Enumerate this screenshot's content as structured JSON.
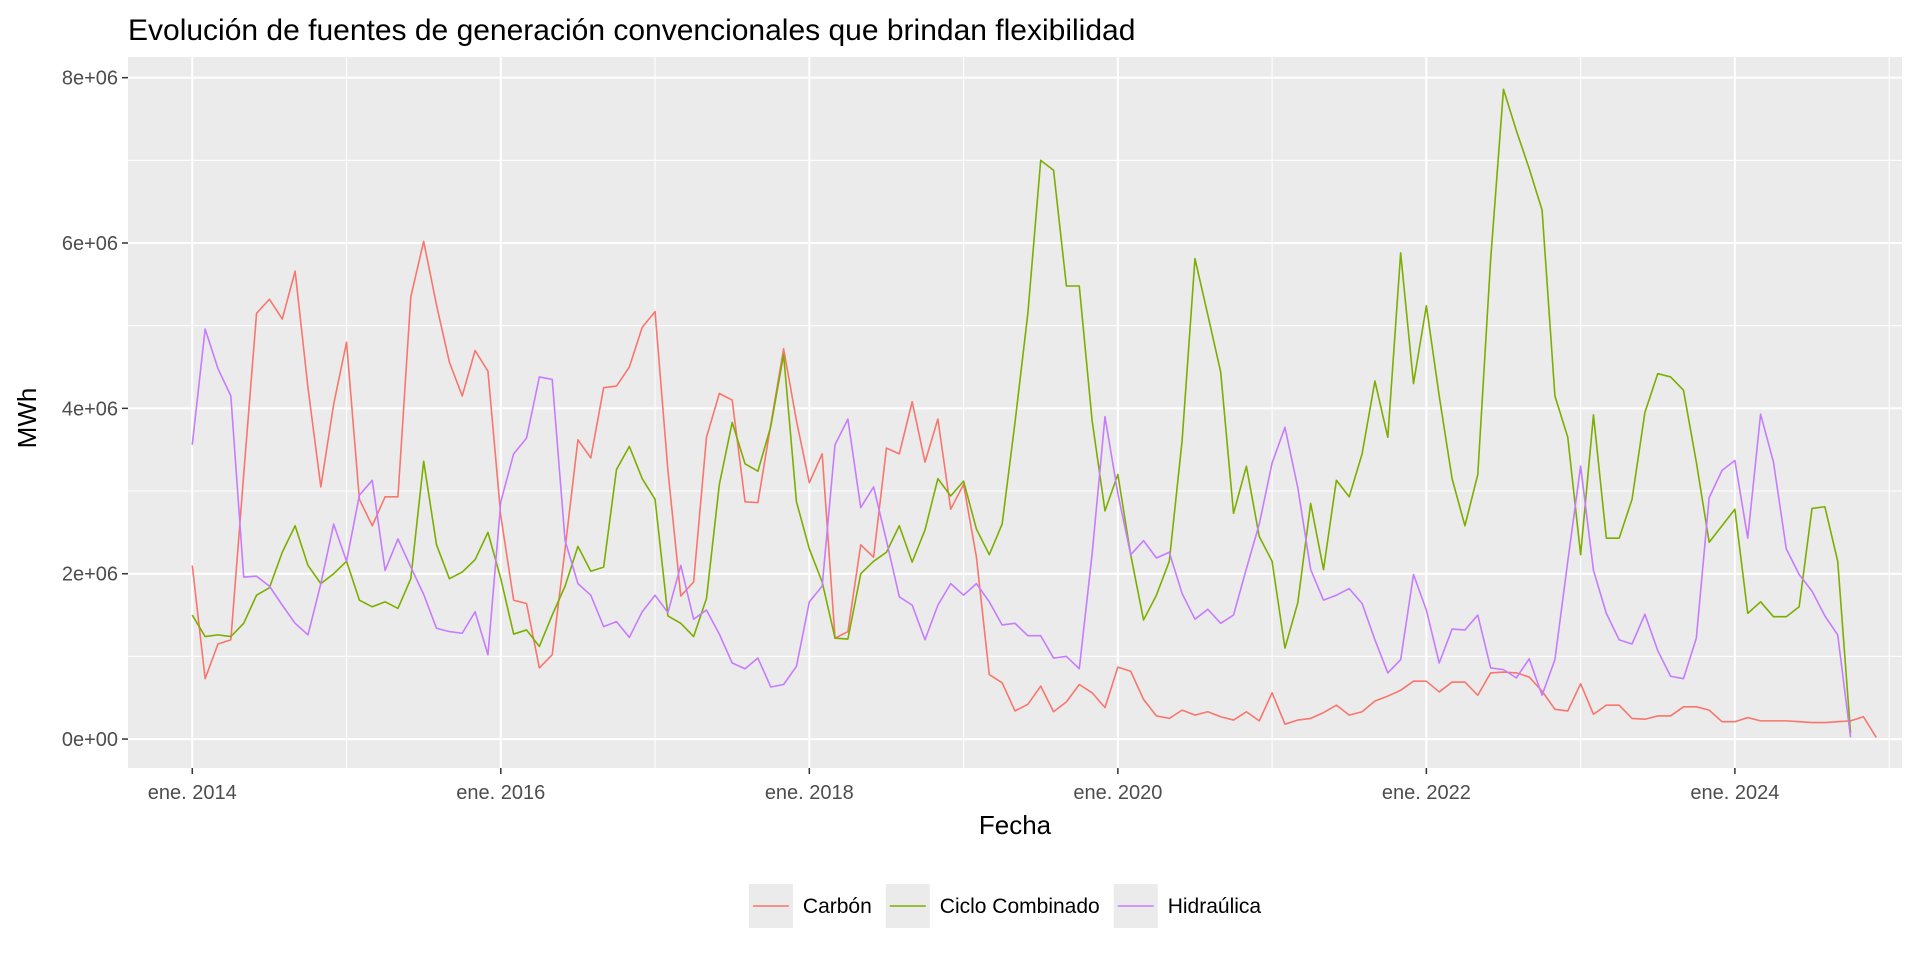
{
  "chart_data": {
    "type": "line",
    "title": "Evolución de fuentes de generación convencionales que brindan flexibilidad",
    "xlabel": "Fecha",
    "ylabel": "MWh",
    "x_start": "2014-01",
    "x_end": "2024-10",
    "xlim": [
      "2013-08",
      "2025-02"
    ],
    "ylim": [
      -350000,
      8250000
    ],
    "x_ticks": [
      {
        "date": "2014-01",
        "label": "ene. 2014"
      },
      {
        "date": "2016-01",
        "label": "ene. 2016"
      },
      {
        "date": "2018-01",
        "label": "ene. 2018"
      },
      {
        "date": "2020-01",
        "label": "ene. 2020"
      },
      {
        "date": "2022-01",
        "label": "ene. 2022"
      },
      {
        "date": "2024-01",
        "label": "ene. 2024"
      }
    ],
    "x_minor_ticks": [
      "2015-01",
      "2017-01",
      "2019-01",
      "2021-01",
      "2023-01",
      "2025-01"
    ],
    "y_ticks": [
      {
        "value": 0,
        "label": "0e+00"
      },
      {
        "value": 2000000,
        "label": "2e+06"
      },
      {
        "value": 4000000,
        "label": "4e+06"
      },
      {
        "value": 6000000,
        "label": "6e+06"
      },
      {
        "value": 8000000,
        "label": "8e+06"
      }
    ],
    "y_minor_ticks": [
      1000000,
      3000000,
      5000000,
      7000000
    ],
    "grid": true,
    "legend_position": "bottom",
    "background": "#ebebeb",
    "series": [
      {
        "name": "Carbón",
        "color": "#f8766d",
        "values": [
          2100000,
          730000,
          1150000,
          1200000,
          3200000,
          5150000,
          5320000,
          5080000,
          5660000,
          4250000,
          3050000,
          4050000,
          4800000,
          2900000,
          2580000,
          2930000,
          2930000,
          5350000,
          6020000,
          5250000,
          4560000,
          4150000,
          4700000,
          4450000,
          2700000,
          1680000,
          1640000,
          860000,
          1020000,
          2300000,
          3620000,
          3400000,
          4250000,
          4270000,
          4500000,
          4980000,
          5170000,
          3250000,
          1730000,
          1900000,
          3650000,
          4180000,
          4100000,
          2870000,
          2860000,
          3800000,
          4720000,
          3850000,
          3100000,
          3450000,
          1220000,
          1300000,
          2350000,
          2200000,
          3520000,
          3450000,
          4080000,
          3350000,
          3870000,
          2780000,
          3080000,
          2200000,
          780000,
          680000,
          340000,
          420000,
          640000,
          330000,
          450000,
          660000,
          560000,
          380000,
          870000,
          820000,
          480000,
          280000,
          250000,
          350000,
          290000,
          330000,
          270000,
          230000,
          330000,
          220000,
          560000,
          180000,
          230000,
          250000,
          320000,
          410000,
          290000,
          330000,
          460000,
          520000,
          590000,
          700000,
          700000,
          570000,
          690000,
          690000,
          530000,
          800000,
          810000,
          800000,
          750000,
          580000,
          360000,
          340000,
          670000,
          300000,
          410000,
          410000,
          250000,
          240000,
          280000,
          280000,
          390000,
          390000,
          350000,
          210000,
          210000,
          260000,
          220000,
          220000,
          220000,
          210000,
          200000,
          200000,
          210000,
          220000,
          270000,
          20000
        ]
      },
      {
        "name": "Ciclo Combinado",
        "color": "#7cae00",
        "values": [
          1500000,
          1240000,
          1260000,
          1240000,
          1400000,
          1740000,
          1830000,
          2260000,
          2580000,
          2100000,
          1880000,
          2000000,
          2150000,
          1680000,
          1600000,
          1660000,
          1580000,
          1940000,
          3360000,
          2350000,
          1940000,
          2020000,
          2170000,
          2500000,
          1940000,
          1270000,
          1320000,
          1120000,
          1500000,
          1850000,
          2330000,
          2030000,
          2080000,
          3260000,
          3540000,
          3150000,
          2900000,
          1490000,
          1400000,
          1240000,
          1700000,
          3080000,
          3830000,
          3330000,
          3240000,
          3780000,
          4650000,
          2870000,
          2300000,
          1900000,
          1220000,
          1210000,
          2000000,
          2150000,
          2260000,
          2580000,
          2140000,
          2530000,
          3150000,
          2940000,
          3120000,
          2540000,
          2230000,
          2600000,
          3830000,
          5150000,
          7000000,
          6880000,
          5480000,
          5480000,
          3850000,
          2760000,
          3200000,
          2230000,
          1440000,
          1740000,
          2150000,
          3610000,
          5810000,
          5130000,
          4440000,
          2730000,
          3300000,
          2450000,
          2150000,
          1100000,
          1650000,
          2850000,
          2050000,
          3130000,
          2930000,
          3450000,
          4330000,
          3650000,
          5880000,
          4300000,
          5240000,
          4150000,
          3150000,
          2580000,
          3200000,
          5800000,
          7860000,
          7360000,
          6900000,
          6400000,
          4150000,
          3650000,
          2230000,
          3920000,
          2430000,
          2430000,
          2900000,
          3950000,
          4420000,
          4380000,
          4220000,
          3350000,
          2380000,
          2580000,
          2780000,
          1520000,
          1660000,
          1480000,
          1480000,
          1600000,
          2790000,
          2810000,
          2150000,
          70000
        ]
      },
      {
        "name": "Hidraúlica",
        "color": "#c77cff",
        "values": [
          3560000,
          4960000,
          4480000,
          4150000,
          1960000,
          1970000,
          1850000,
          1620000,
          1400000,
          1260000,
          1880000,
          2600000,
          2150000,
          2950000,
          3130000,
          2040000,
          2420000,
          2080000,
          1750000,
          1340000,
          1300000,
          1280000,
          1540000,
          1020000,
          2870000,
          3450000,
          3640000,
          4380000,
          4350000,
          2400000,
          1880000,
          1740000,
          1360000,
          1420000,
          1230000,
          1540000,
          1740000,
          1530000,
          2100000,
          1450000,
          1560000,
          1270000,
          920000,
          850000,
          980000,
          630000,
          660000,
          880000,
          1660000,
          1850000,
          3560000,
          3870000,
          2800000,
          3050000,
          2400000,
          1720000,
          1620000,
          1200000,
          1620000,
          1880000,
          1740000,
          1880000,
          1660000,
          1380000,
          1400000,
          1250000,
          1250000,
          980000,
          1000000,
          850000,
          2240000,
          3900000,
          2970000,
          2230000,
          2400000,
          2190000,
          2260000,
          1760000,
          1450000,
          1570000,
          1400000,
          1500000,
          2060000,
          2600000,
          3340000,
          3770000,
          3040000,
          2050000,
          1680000,
          1740000,
          1820000,
          1640000,
          1200000,
          800000,
          960000,
          1990000,
          1560000,
          920000,
          1330000,
          1320000,
          1500000,
          860000,
          840000,
          740000,
          970000,
          530000,
          960000,
          2150000,
          3300000,
          2040000,
          1520000,
          1200000,
          1150000,
          1510000,
          1070000,
          760000,
          730000,
          1220000,
          2920000,
          3250000,
          3370000,
          2430000,
          3930000,
          3350000,
          2300000,
          1990000,
          1790000,
          1490000,
          1260000,
          20000
        ]
      }
    ]
  }
}
